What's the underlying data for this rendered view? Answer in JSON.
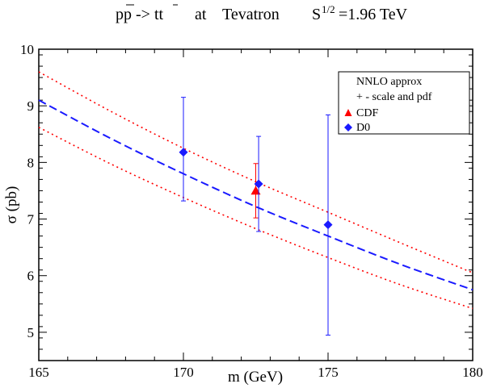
{
  "chart_data": {
    "type": "line",
    "title": {
      "process": "pp -> tt",
      "at": "at",
      "collider": "Tevatron",
      "sqrt_s_base": "S",
      "sqrt_s_power": "1/2",
      "sqrt_s_value": "=1.96 TeV"
    },
    "xlabel": "m (GeV)",
    "ylabel_symbol": "σ",
    "ylabel_unit": " (pb)",
    "xlim": [
      165,
      180
    ],
    "ylim": [
      4.5,
      10
    ],
    "xticks": [
      {
        "v": 165,
        "label": "165"
      },
      {
        "v": 170,
        "label": "170"
      },
      {
        "v": 175,
        "label": "175"
      },
      {
        "v": 180,
        "label": "180"
      }
    ],
    "yticks": [
      {
        "v": 5,
        "label": "5"
      },
      {
        "v": 6,
        "label": "6"
      },
      {
        "v": 7,
        "label": "7"
      },
      {
        "v": 8,
        "label": "8"
      },
      {
        "v": 9,
        "label": "9"
      },
      {
        "v": 10,
        "label": "10"
      }
    ],
    "x_minor_step": 1,
    "y_minor_step": 0.2,
    "series": [
      {
        "name": "NNLO approx",
        "style": "dashed",
        "color": "#1a1aff",
        "x": [
          165,
          167.5,
          170,
          172.5,
          175,
          177.5,
          180
        ],
        "y": [
          9.1,
          8.42,
          7.8,
          7.22,
          6.7,
          6.2,
          5.75
        ]
      },
      {
        "name": "+ - scale and pdf",
        "style": "dotted",
        "color": "#ff0000",
        "x": [
          165,
          167.5,
          170,
          172.5,
          175,
          177.5,
          180
        ],
        "y": [
          9.6,
          8.9,
          8.25,
          7.66,
          7.12,
          6.58,
          6.05
        ]
      },
      {
        "name": "",
        "style": "dotted",
        "color": "#ff0000",
        "x": [
          165,
          167.5,
          170,
          172.5,
          175,
          177.5,
          180
        ],
        "y": [
          8.62,
          7.97,
          7.38,
          6.83,
          6.32,
          5.84,
          5.42
        ]
      }
    ],
    "points": [
      {
        "name": "CDF",
        "marker": "triangle",
        "color": "#ff0000",
        "x": 172.5,
        "y": 7.5,
        "ylow": 7.02,
        "yhigh": 7.98
      },
      {
        "name": "D0",
        "marker": "diamond",
        "color": "#1a1aff",
        "x": 170,
        "y": 8.18,
        "ylow": 7.32,
        "yhigh": 9.15
      },
      {
        "name": "D0",
        "marker": "diamond",
        "color": "#1a1aff",
        "x": 172.6,
        "y": 7.62,
        "ylow": 6.78,
        "yhigh": 8.46
      },
      {
        "name": "D0",
        "marker": "diamond",
        "color": "#1a1aff",
        "x": 175,
        "y": 6.9,
        "ylow": 4.95,
        "yhigh": 8.84
      }
    ],
    "legend": {
      "position": "top-right",
      "entries": [
        {
          "label": "NNLO approx",
          "marker": "none"
        },
        {
          "label": "+ - scale and pdf",
          "marker": "none"
        },
        {
          "label": "CDF",
          "marker": "triangle",
          "color": "#ff0000"
        },
        {
          "label": "D0",
          "marker": "diamond",
          "color": "#1a1aff"
        }
      ]
    }
  }
}
